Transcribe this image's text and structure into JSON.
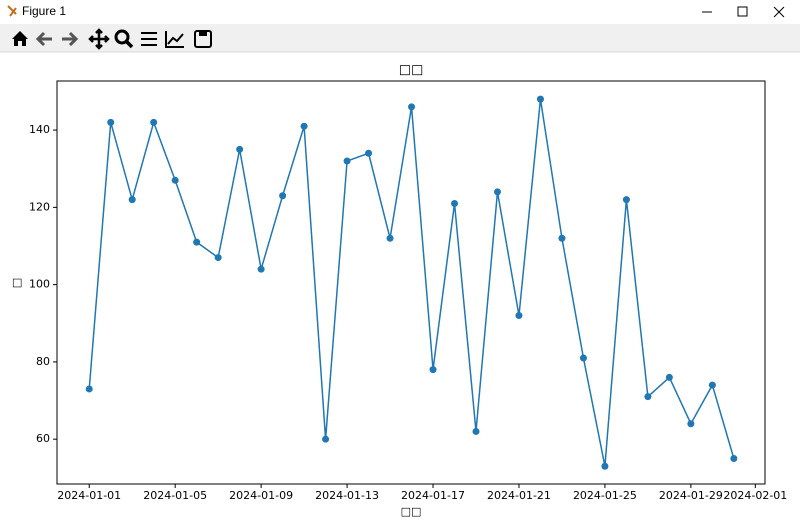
{
  "window": {
    "title": "Figure 1"
  },
  "chart_data": {
    "type": "line",
    "title": "□□",
    "xlabel": "□□",
    "ylabel": "□",
    "x": [
      "2024-01-01",
      "2024-01-02",
      "2024-01-03",
      "2024-01-04",
      "2024-01-05",
      "2024-01-06",
      "2024-01-07",
      "2024-01-08",
      "2024-01-09",
      "2024-01-10",
      "2024-01-11",
      "2024-01-12",
      "2024-01-13",
      "2024-01-14",
      "2024-01-15",
      "2024-01-16",
      "2024-01-17",
      "2024-01-18",
      "2024-01-19",
      "2024-01-20",
      "2024-01-21",
      "2024-01-22",
      "2024-01-23",
      "2024-01-24",
      "2024-01-25",
      "2024-01-26",
      "2024-01-27",
      "2024-01-28",
      "2024-01-29",
      "2024-01-30",
      "2024-01-31"
    ],
    "series": [
      {
        "color": "#1f77b4",
        "values": [
          73,
          142,
          122,
          142,
          127,
          111,
          107,
          135,
          104,
          123,
          141,
          60,
          132,
          134,
          112,
          146,
          78,
          121,
          62,
          124,
          92,
          148,
          112,
          81,
          53,
          122,
          71,
          76,
          64,
          74,
          55
        ]
      }
    ],
    "xlim": [
      "2023-12-30T12:00:00Z",
      "2024-02-01T10:48:00Z"
    ],
    "xticks": [
      "2024-01-01",
      "2024-01-05",
      "2024-01-09",
      "2024-01-13",
      "2024-01-17",
      "2024-01-21",
      "2024-01-25",
      "2024-01-29",
      "2024-02-01"
    ],
    "ylim": [
      48.4,
      152.7
    ],
    "yticks": [
      60,
      80,
      100,
      120,
      140
    ],
    "grid": false,
    "markers": true
  }
}
